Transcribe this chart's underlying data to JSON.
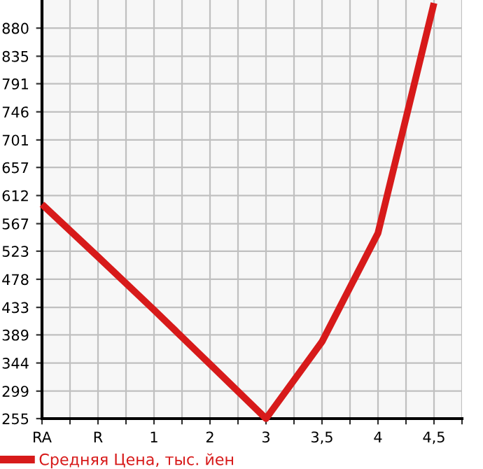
{
  "chart_data": {
    "type": "line",
    "categories": [
      "RA",
      "R",
      "1",
      "2",
      "3",
      "3,5",
      "4",
      "4,5"
    ],
    "series": [
      {
        "name": "Средняя Цена, тыс. йен",
        "color": "#d71a1a",
        "values": [
          598,
          514,
          429,
          342,
          255,
          378,
          552,
          920
        ]
      }
    ],
    "ylim": [
      255,
      925
    ],
    "yticks": [
      255,
      299,
      344,
      389,
      433,
      478,
      523,
      567,
      612,
      657,
      701,
      746,
      791,
      835,
      880
    ],
    "grid": true,
    "legend": "bottom left",
    "marker": "none",
    "line_style": "solid"
  }
}
